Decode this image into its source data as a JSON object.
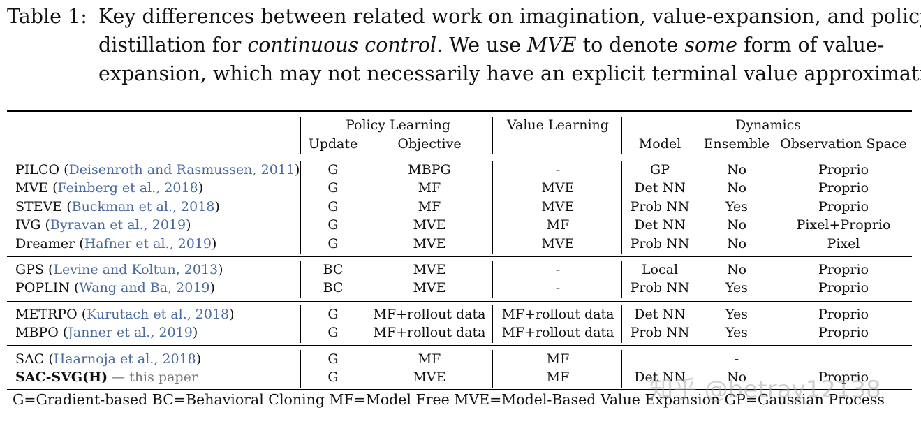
{
  "caption": {
    "label": "Table 1:",
    "l1": "Key differences between related work on imagination, value-expansion, and policy",
    "l2a": "distillation for",
    "l2b": "continuous control.",
    "l2c": "We use",
    "l2d": "MVE",
    "l2e": "to denote",
    "l2f": "some",
    "l2g": "form of value-",
    "l3": "expansion, which may not necessarily have an explicit terminal value approximation."
  },
  "headers": {
    "policy_learning": "Policy Learning",
    "value_learning": "Value Learning",
    "dynamics": "Dynamics",
    "update": "Update",
    "objective": "Objective",
    "model": "Model",
    "ensemble": "Ensemble",
    "observation_space": "Observation Space"
  },
  "rows": [
    {
      "name": "PILCO",
      "cite": "Deisenroth and Rasmussen, 2011",
      "update": "G",
      "objective": "MBPG",
      "value": "-",
      "model": "GP",
      "ensemble": "No",
      "obs": "Proprio"
    },
    {
      "name": "MVE",
      "cite": "Feinberg et al., 2018",
      "update": "G",
      "objective": "MF",
      "value": "MVE",
      "model": "Det NN",
      "ensemble": "No",
      "obs": "Proprio"
    },
    {
      "name": "STEVE",
      "cite": "Buckman et al., 2018",
      "update": "G",
      "objective": "MF",
      "value": "MVE",
      "model": "Prob NN",
      "ensemble": "Yes",
      "obs": "Proprio"
    },
    {
      "name": "IVG",
      "cite": "Byravan et al., 2019",
      "update": "G",
      "objective": "MVE",
      "value": "MF",
      "model": "Det NN",
      "ensemble": "No",
      "obs": "Pixel+Proprio"
    },
    {
      "name": "Dreamer",
      "cite": "Hafner et al., 2019",
      "update": "G",
      "objective": "MVE",
      "value": "MVE",
      "model": "Prob NN",
      "ensemble": "No",
      "obs": "Pixel"
    },
    {
      "name": "GPS",
      "cite": "Levine and Koltun, 2013",
      "update": "BC",
      "objective": "MVE",
      "value": "-",
      "model": "Local",
      "ensemble": "No",
      "obs": "Proprio"
    },
    {
      "name": "POPLIN",
      "cite": "Wang and Ba, 2019",
      "update": "BC",
      "objective": "MVE",
      "value": "-",
      "model": "Prob NN",
      "ensemble": "Yes",
      "obs": "Proprio"
    },
    {
      "name": "METRPO",
      "cite": "Kurutach et al., 2018",
      "update": "G",
      "objective": "MF+rollout data",
      "value": "MF+rollout data",
      "model": "Det NN",
      "ensemble": "Yes",
      "obs": "Proprio"
    },
    {
      "name": "MBPO",
      "cite": "Janner et al., 2019",
      "update": "G",
      "objective": "MF+rollout data",
      "value": "MF+rollout data",
      "model": "Prob NN",
      "ensemble": "Yes",
      "obs": "Proprio"
    },
    {
      "name": "SAC",
      "cite": "Haarnoja et al., 2018",
      "update": "G",
      "objective": "MF",
      "value": "MF",
      "model": "",
      "ensemble": "-",
      "obs": ""
    },
    {
      "name": "SAC-SVG(H)",
      "cite": "",
      "suffix": "— this paper",
      "update": "G",
      "objective": "MVE",
      "value": "MF",
      "model": "Det NN",
      "ensemble": "No",
      "obs": "Proprio"
    }
  ],
  "footnote": "G=Gradient-based BC=Behavioral Cloning MF=Model Free MVE=Model-Based Value Expansion GP=Gaussian Process",
  "watermark": "知乎 @betray12138"
}
